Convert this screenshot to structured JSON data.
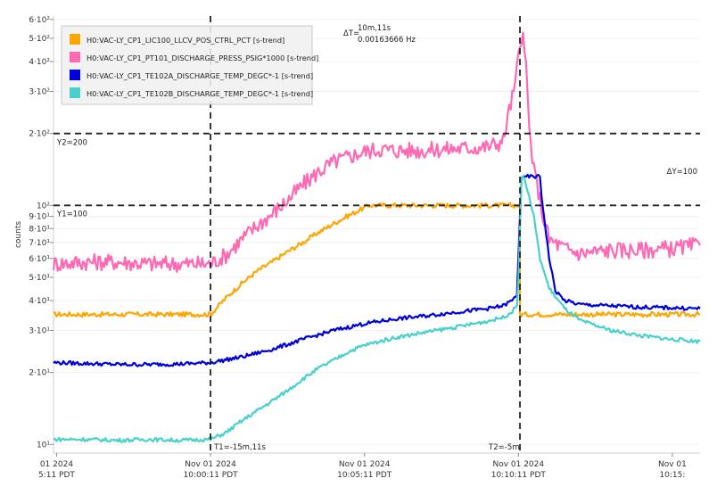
{
  "chart_data": {
    "type": "line",
    "ylabel": "counts",
    "y_scale": "log",
    "ylim": [
      9.2,
      620
    ],
    "y_ticks": [
      {
        "value": 10,
        "label": "10¹"
      },
      {
        "value": 20,
        "label": "2·10¹"
      },
      {
        "value": 30,
        "label": "3·10¹"
      },
      {
        "value": 40,
        "label": "4·10¹"
      },
      {
        "value": 50,
        "label": "5·10¹"
      },
      {
        "value": 60,
        "label": "6·10¹"
      },
      {
        "value": 70,
        "label": "7·10¹"
      },
      {
        "value": 80,
        "label": "8·10¹"
      },
      {
        "value": 90,
        "label": "9·10¹"
      },
      {
        "value": 100,
        "label": "10²"
      },
      {
        "value": 200,
        "label": "2·10²"
      },
      {
        "value": 300,
        "label": "3·10²"
      },
      {
        "value": 400,
        "label": "4·10²"
      },
      {
        "value": 500,
        "label": "5·10²"
      },
      {
        "value": 600,
        "label": "6·10²"
      }
    ],
    "x_unit": "minutes",
    "xlim": [
      -5.1,
      15.9
    ],
    "x_ticks": [
      {
        "value": -5,
        "label1": "01 2024",
        "label2": "5:11 PDT"
      },
      {
        "value": 0,
        "label1": "Nov 01 2024",
        "label2": "10:00:11 PDT"
      },
      {
        "value": 5,
        "label1": "Nov 01 2024",
        "label2": "10:05:11 PDT"
      },
      {
        "value": 10,
        "label1": "Nov 01 2024",
        "label2": "10:10:11 PDT"
      },
      {
        "value": 15,
        "label1": "Nov 01",
        "label2": "10:15:"
      }
    ],
    "legend_position": "top-left",
    "series": [
      {
        "name": "H0:VAC-LY_CP1_LIC100_LLCV_POS_CTRL_PCT [s-trend]",
        "color": "#FFA500",
        "x": [
          -5.1,
          0,
          0.5,
          1,
          1.5,
          2,
          2.5,
          3,
          3.5,
          4,
          4.5,
          5.15,
          10.05,
          10.05,
          15.9
        ],
        "y": [
          35,
          35,
          41,
          47,
          53,
          58,
          64,
          70,
          77,
          84,
          91,
          100,
          100,
          35,
          35
        ]
      },
      {
        "name": "H0:VAC-LY_CP1_PT101_DISCHARGE_PRESS_PSIG*1000 [s-trend]",
        "color": "#FF69B4",
        "x": [
          -5.1,
          -4,
          -3,
          -2,
          -1,
          0,
          0.5,
          1,
          1.5,
          2,
          2.5,
          3,
          3.5,
          4,
          4.5,
          5,
          5.5,
          6,
          7,
          8,
          9,
          9.5,
          9.7,
          9.9,
          10.0,
          10.1,
          10.15,
          10.25,
          10.35,
          10.5,
          10.65,
          10.8,
          11,
          11.5,
          12,
          13,
          14,
          15,
          15.9
        ],
        "y": [
          57,
          58,
          58,
          57,
          57,
          57,
          62,
          72,
          82,
          92,
          105,
          122,
          138,
          152,
          160,
          168,
          172,
          170,
          170,
          173,
          176,
          185,
          250,
          320,
          420,
          510,
          490,
          380,
          210,
          140,
          115,
          90,
          72,
          66,
          63,
          65,
          65,
          66,
          68
        ]
      },
      {
        "name": "H0:VAC-LY_CP1_TE102A_DISCHARGE_TEMP_DEGC*-1 [s-trend]",
        "color": "#0000DD",
        "x": [
          -5.1,
          -4,
          -3,
          -2,
          -1,
          0,
          1,
          2,
          3,
          4,
          5,
          6,
          7,
          8,
          9,
          9.5,
          9.8,
          9.95,
          10.05,
          10.1,
          10.2,
          10.25,
          10.35,
          10.6,
          10.7,
          10.75,
          11,
          11.2,
          11.5,
          12,
          13,
          14,
          15,
          15.9
        ],
        "y": [
          22,
          21.8,
          21.6,
          21.6,
          21.7,
          22,
          23.2,
          25,
          27.5,
          30,
          32,
          33.5,
          34.5,
          35.8,
          37,
          38,
          40,
          42,
          90,
          130,
          130,
          132,
          132,
          132,
          132,
          110,
          60,
          44,
          40,
          38.5,
          38,
          37.5,
          37.3,
          37
        ]
      },
      {
        "name": "H0:VAC-LY_CP1_TE102B_DISCHARGE_TEMP_DEGC*-1 [s-trend]",
        "color": "#48D1CC",
        "x": [
          -5.1,
          -4,
          -3,
          -2,
          -1,
          0,
          0.5,
          1,
          1.5,
          2,
          2.5,
          3,
          3.5,
          4,
          4.5,
          5,
          5.5,
          6,
          7,
          8,
          9,
          9.5,
          9.8,
          9.95,
          10.0,
          10.05,
          10.1,
          10.2,
          10.3,
          10.5,
          10.7,
          11,
          11.5,
          12,
          13,
          14,
          15,
          15.9
        ],
        "y": [
          10.5,
          10.5,
          10.4,
          10.5,
          10.4,
          10.5,
          11.2,
          12.5,
          13.8,
          15.2,
          16.8,
          18.8,
          20.8,
          22.5,
          24.5,
          26,
          27,
          28,
          29.5,
          31,
          32.8,
          34,
          36,
          38,
          50,
          80,
          130,
          130,
          115,
          90,
          60,
          45,
          37,
          33,
          30,
          28.5,
          27.5,
          27
        ]
      }
    ],
    "cursors": {
      "t1": {
        "x": 0,
        "label": "T1=-15m,11s"
      },
      "t2": {
        "x": 10.05,
        "label": "T2=-5m"
      },
      "y1": {
        "y": 100,
        "label": "Y1=100"
      },
      "y2": {
        "y": 200,
        "label": "Y2=200"
      },
      "delta_t_label": "ΔT=",
      "delta_t_value": "10m,11s",
      "delta_t_freq": "0.00163666 Hz",
      "delta_y_label": "ΔY=100"
    }
  }
}
